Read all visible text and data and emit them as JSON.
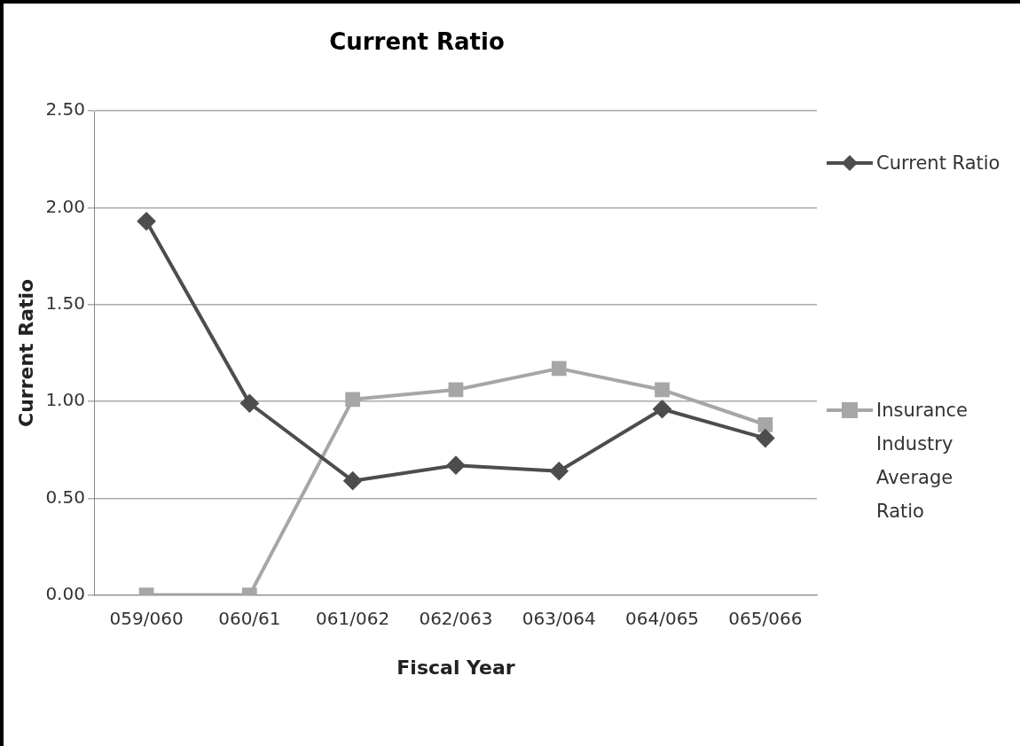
{
  "chart_data": {
    "type": "line",
    "title": "Current Ratio",
    "xlabel": "Fiscal Year",
    "ylabel": "Current Ratio",
    "categories": [
      "059/060",
      "060/61",
      "061/062",
      "062/063",
      "063/064",
      "064/065",
      "065/066"
    ],
    "series": [
      {
        "name": "Current Ratio",
        "color": "#4d4d4d",
        "marker": "diamond",
        "values": [
          1.93,
          0.99,
          0.59,
          0.67,
          0.64,
          0.96,
          0.81
        ]
      },
      {
        "name": "Insurance Industry Average Ratio",
        "color": "#a6a6a6",
        "marker": "square",
        "values": [
          0,
          0,
          1.01,
          1.06,
          1.17,
          1.06,
          0.88
        ]
      }
    ],
    "ylim": [
      0,
      2.5
    ],
    "yticks": [
      {
        "value": 0,
        "label": "0.00"
      },
      {
        "value": 0.5,
        "label": "0.50"
      },
      {
        "value": 1,
        "label": "1.00"
      },
      {
        "value": 1.5,
        "label": "1.50"
      },
      {
        "value": 2,
        "label": "2.00"
      },
      {
        "value": 2.5,
        "label": "2.50"
      }
    ],
    "grid": "y",
    "legend": "right"
  }
}
